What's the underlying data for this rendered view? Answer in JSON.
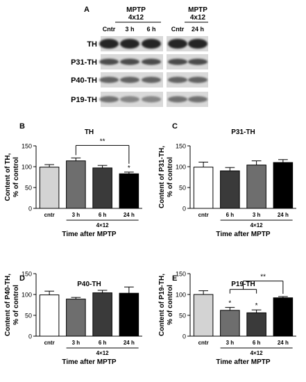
{
  "panel_a": {
    "label": "A",
    "header_group1_line1": "MPTP",
    "header_group1_line2": "4x12",
    "header_group2_line1": "MPTP",
    "header_group2_line2": "4x12",
    "lane_labels": [
      "Cntr",
      "3 h",
      "6 h",
      "Cntr",
      "24 h"
    ],
    "rows": [
      "TH",
      "P31-TH",
      "P40-TH",
      "P19-TH"
    ]
  },
  "chart_data": [
    {
      "panel": "B",
      "type": "bar",
      "title": "TH",
      "ylabel_line1": "Content of TH,",
      "ylabel_line2": "% of control",
      "xlabel": "Time after MPTP",
      "group_label": "4×12",
      "categories": [
        "cntr",
        "3 h",
        "6 h",
        "24 h"
      ],
      "values": [
        99,
        114,
        97,
        83
      ],
      "errors": [
        6,
        7,
        6,
        4
      ],
      "colors": [
        "#d3d3d3",
        "#6e6e6e",
        "#3a3a3a",
        "#000000"
      ],
      "ylim": [
        0,
        150
      ],
      "yticks": [
        "0",
        "50",
        "100",
        "150"
      ],
      "marks": [
        {
          "index": 3,
          "text": "*"
        }
      ],
      "brackets": [
        {
          "from": 1,
          "to": 3,
          "text": "**"
        }
      ]
    },
    {
      "panel": "C",
      "type": "bar",
      "title": "P31-TH",
      "ylabel_line1": "Content of P31-TH,",
      "ylabel_line2": "% of control",
      "xlabel": "Time after MPTP",
      "group_label": "4×12",
      "categories": [
        "cntr",
        "6 h",
        "3 h",
        "24 h"
      ],
      "values": [
        99,
        90,
        104,
        110
      ],
      "errors": [
        12,
        8,
        10,
        7
      ],
      "colors": [
        "#ffffff",
        "#3a3a3a",
        "#6e6e6e",
        "#000000"
      ],
      "ylim": [
        0,
        150
      ],
      "yticks": [
        "0",
        "50",
        "100",
        "150"
      ],
      "marks": [],
      "brackets": []
    },
    {
      "panel": "D",
      "type": "bar",
      "title": "P40-TH",
      "ylabel_line1": "Content of P40-TH,",
      "ylabel_line2": "% of control",
      "xlabel": "Time after MPTP",
      "group_label": "4×12",
      "categories": [
        "cntr",
        "3 h",
        "6 h",
        "24 h"
      ],
      "values": [
        99,
        89,
        104,
        103
      ],
      "errors": [
        9,
        4,
        6,
        15
      ],
      "colors": [
        "#ffffff",
        "#6e6e6e",
        "#3a3a3a",
        "#000000"
      ],
      "ylim": [
        0,
        150
      ],
      "yticks": [
        "0",
        "50",
        "100",
        "150"
      ],
      "marks": [],
      "brackets": []
    },
    {
      "panel": "E",
      "type": "bar",
      "title": "P19-TH",
      "ylabel_line1": "Content of P19-TH,",
      "ylabel_line2": "% of control",
      "xlabel": "Time after MPTP",
      "group_label": "4×12",
      "categories": [
        "cntr",
        "3 h",
        "6 h",
        "24 h"
      ],
      "values": [
        100,
        62,
        56,
        92
      ],
      "errors": [
        9,
        7,
        7,
        3
      ],
      "colors": [
        "#d3d3d3",
        "#6e6e6e",
        "#3a3a3a",
        "#000000"
      ],
      "ylim": [
        0,
        150
      ],
      "yticks": [
        "0",
        "50",
        "100",
        "150"
      ],
      "marks": [
        {
          "index": 1,
          "text": "*"
        },
        {
          "index": 2,
          "text": "*"
        }
      ],
      "brackets": [
        {
          "from": 1,
          "to": 3,
          "text": "**",
          "multi": [
            1,
            2
          ]
        }
      ]
    }
  ]
}
